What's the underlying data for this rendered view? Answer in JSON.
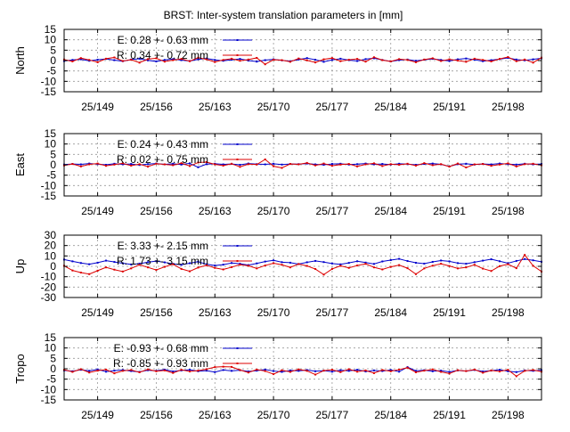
{
  "title": "BRST: Inter-system translation parameters in [mm]",
  "colors": {
    "E": "#0000cc",
    "R": "#dd0000",
    "grid": "#999999",
    "axis": "#000000"
  },
  "chart_data": [
    {
      "type": "line",
      "ylabel": "North",
      "xlim": [
        145,
        202
      ],
      "ylim": [
        -15,
        15
      ],
      "yticks": [
        "15",
        "10",
        "5",
        "0",
        "-5",
        "-10",
        "-15"
      ],
      "ytick_values": [
        15,
        10,
        5,
        0,
        -5,
        -10,
        -15
      ],
      "xtick_values": [
        149,
        156,
        163,
        170,
        177,
        184,
        191,
        198
      ],
      "xtick_labels": [
        "25/149",
        "25/156",
        "25/163",
        "25/170",
        "25/177",
        "25/184",
        "25/191",
        "25/198"
      ],
      "series": [
        {
          "name": "E",
          "legend": "E:   0.28 +- 0.63 mm",
          "color": "#0000cc",
          "values": [
            -0.2,
            0.3,
            0.6,
            -0.1,
            0.4,
            0.8,
            0.2,
            -0.3,
            0.5,
            0.9,
            0.1,
            -0.4,
            0.3,
            0.7,
            0.2,
            -0.2,
            0.6,
            1.0,
            0.3,
            -0.1,
            0.4,
            0.8,
            0.0,
            -0.5,
            0.2,
            0.6,
            0.1,
            -0.3,
            0.5,
            1.2,
            0.4,
            -0.6,
            0.3,
            0.9,
            0.2,
            -0.2,
            0.7,
            1.1,
            0.3,
            -0.4,
            0.2,
            0.5,
            -0.1,
            0.4,
            0.8,
            0.3,
            -0.2,
            0.6,
            1.0,
            0.4,
            -0.3,
            0.2,
            0.7,
            1.3,
            0.5,
            0.1,
            0.6,
            1.1
          ]
        },
        {
          "name": "R",
          "legend": "R:   0.34 +- 0.72 mm",
          "color": "#dd0000",
          "values": [
            0.5,
            -0.4,
            1.2,
            0.3,
            -0.8,
            0.9,
            1.5,
            -0.2,
            0.4,
            -1.0,
            0.7,
            1.1,
            -0.5,
            0.2,
            0.8,
            -0.3,
            1.4,
            0.6,
            -0.7,
            0.3,
            0.9,
            -0.1,
            0.5,
            1.3,
            -1.8,
            0.4,
            0.2,
            -0.6,
            1.0,
            0.1,
            -0.9,
            0.6,
            1.2,
            -0.3,
            0.4,
            0.8,
            -0.5,
            1.6,
            0.2,
            -0.4,
            0.7,
            0.3,
            -0.8,
            0.5,
            1.1,
            -0.2,
            0.6,
            0.0,
            -0.6,
            0.9,
            0.3,
            -0.4,
            0.8,
            1.7,
            -0.3,
            0.5,
            -1.0,
            1.4
          ]
        }
      ]
    },
    {
      "type": "line",
      "ylabel": "East",
      "xlim": [
        145,
        202
      ],
      "ylim": [
        -15,
        15
      ],
      "yticks": [
        "15",
        "10",
        "5",
        "0",
        "-5",
        "-10",
        "-15"
      ],
      "ytick_values": [
        15,
        10,
        5,
        0,
        -5,
        -10,
        -15
      ],
      "xtick_values": [
        149,
        156,
        163,
        170,
        177,
        184,
        191,
        198
      ],
      "xtick_labels": [
        "25/149",
        "25/156",
        "25/163",
        "25/170",
        "25/177",
        "25/184",
        "25/191",
        "25/198"
      ],
      "series": [
        {
          "name": "E",
          "legend": "E:   0.24 +- 0.43 mm",
          "color": "#0000cc",
          "values": [
            0.1,
            0.4,
            0.2,
            0.6,
            0.3,
            0.0,
            0.5,
            0.2,
            0.4,
            -0.1,
            0.3,
            0.6,
            0.2,
            0.5,
            0.1,
            0.7,
            -1.2,
            0.3,
            0.5,
            0.2,
            0.4,
            0.0,
            0.6,
            0.3,
            0.2,
            0.5,
            0.1,
            0.4,
            0.3,
            0.6,
            0.2,
            0.0,
            0.4,
            0.5,
            0.1,
            0.3,
            0.6,
            0.2,
            0.4,
            0.1,
            0.5,
            0.3,
            0.0,
            0.4,
            0.6,
            0.2,
            -0.8,
            0.3,
            0.5,
            0.1,
            0.4,
            0.2,
            0.6,
            0.3,
            0.1,
            0.5,
            0.2,
            0.4
          ]
        },
        {
          "name": "R",
          "legend": "R:   0.02 +- 0.75 mm",
          "color": "#dd0000",
          "values": [
            -0.3,
            0.4,
            -0.8,
            0.2,
            0.6,
            -0.5,
            0.1,
            0.7,
            -0.4,
            0.3,
            -0.9,
            0.5,
            0.2,
            -0.2,
            0.8,
            -0.6,
            1.1,
            1.3,
            0.2,
            -0.4,
            0.5,
            -1.0,
            0.3,
            0.1,
            2.6,
            -0.7,
            -1.5,
            0.4,
            0.2,
            0.9,
            -0.3,
            0.6,
            -0.5,
            0.1,
            0.4,
            -0.8,
            0.2,
            0.7,
            -0.6,
            0.3,
            0.0,
            0.5,
            -0.4,
            0.8,
            -0.2,
            0.3,
            -0.9,
            0.6,
            -1.3,
            0.2,
            0.4,
            -0.5,
            0.1,
            0.7,
            -0.8,
            0.3,
            0.5,
            -0.2
          ]
        }
      ]
    },
    {
      "type": "line",
      "ylabel": "Up",
      "xlim": [
        145,
        202
      ],
      "ylim": [
        -30,
        30
      ],
      "yticks": [
        "30",
        "20",
        "10",
        "0",
        "-10",
        "-20",
        "-30"
      ],
      "ytick_values": [
        30,
        20,
        10,
        0,
        -10,
        -20,
        -30
      ],
      "xtick_values": [
        149,
        156,
        163,
        170,
        177,
        184,
        191,
        198
      ],
      "xtick_labels": [
        "25/149",
        "25/156",
        "25/163",
        "25/170",
        "25/177",
        "25/184",
        "25/191",
        "25/198"
      ],
      "series": [
        {
          "name": "E",
          "legend": "E:   3.33 +- 2.15 mm",
          "color": "#0000cc",
          "values": [
            6.5,
            4.8,
            3.2,
            2.0,
            3.5,
            5.5,
            4.2,
            3.0,
            1.8,
            2.6,
            4.0,
            5.0,
            3.8,
            2.4,
            1.5,
            3.0,
            4.5,
            2.0,
            0.8,
            1.6,
            3.2,
            2.5,
            1.2,
            2.8,
            4.6,
            5.8,
            4.0,
            3.5,
            2.2,
            3.9,
            5.2,
            4.1,
            2.7,
            1.9,
            3.3,
            4.9,
            3.6,
            2.3,
            4.7,
            6.0,
            7.2,
            5.1,
            3.4,
            2.6,
            4.3,
            5.6,
            4.8,
            3.1,
            2.5,
            4.0,
            5.5,
            6.8,
            4.9,
            3.0,
            5.2,
            7.0,
            5.8,
            4.4
          ]
        },
        {
          "name": "R",
          "legend": "R:   1.73 +- 3.15 mm",
          "color": "#dd0000",
          "values": [
            0.5,
            -4.0,
            -6.0,
            -7.5,
            -4.2,
            -1.0,
            -3.2,
            -5.0,
            -2.0,
            1.5,
            -1.0,
            -3.5,
            -0.5,
            2.0,
            -2.5,
            -4.8,
            -1.2,
            1.0,
            -1.5,
            -3.0,
            -0.8,
            1.6,
            0.5,
            -2.0,
            0.8,
            3.0,
            1.5,
            -1.0,
            2.2,
            0.4,
            -2.6,
            -8.0,
            -2.5,
            0.5,
            -1.5,
            0.8,
            2.4,
            -1.0,
            -3.0,
            -0.5,
            1.2,
            -1.8,
            -7.5,
            -2.0,
            0.6,
            2.5,
            0.3,
            -2.0,
            -1.0,
            1.5,
            -2.2,
            -4.5,
            0.2,
            2.0,
            -1.8,
            11.0,
            0.5,
            -5.0
          ]
        }
      ]
    },
    {
      "type": "line",
      "ylabel": "Tropo",
      "xlim": [
        145,
        202
      ],
      "ylim": [
        -15,
        15
      ],
      "yticks": [
        "15",
        "10",
        "5",
        "0",
        "-5",
        "-10",
        "-15"
      ],
      "ytick_values": [
        15,
        10,
        5,
        0,
        -5,
        -10,
        -15
      ],
      "xtick_values": [
        149,
        156,
        163,
        170,
        177,
        184,
        191,
        198
      ],
      "xtick_labels": [
        "25/149",
        "25/156",
        "25/163",
        "25/170",
        "25/177",
        "25/184",
        "25/191",
        "25/198"
      ],
      "series": [
        {
          "name": "E",
          "legend": "E:  -0.93 +- 0.68 mm",
          "color": "#0000cc",
          "values": [
            -0.8,
            -1.2,
            -0.5,
            -1.0,
            -0.3,
            -1.4,
            -0.9,
            -0.6,
            -1.1,
            -1.5,
            -0.7,
            -1.0,
            -0.4,
            -1.3,
            -0.8,
            -0.5,
            -1.2,
            -0.9,
            -1.6,
            -0.6,
            -1.0,
            -0.7,
            -1.3,
            -0.9,
            -0.4,
            -1.1,
            -1.5,
            -0.8,
            -1.0,
            -0.6,
            -1.2,
            -0.9,
            -1.4,
            -0.7,
            -1.0,
            -0.5,
            -1.3,
            -0.8,
            -1.1,
            -0.6,
            -1.4,
            0.8,
            -1.0,
            -0.7,
            -1.2,
            -0.9,
            -1.5,
            -0.8,
            -1.1,
            -0.6,
            -1.3,
            -0.9,
            -0.5,
            -1.2,
            -1.6,
            -0.8,
            -1.0,
            -0.7
          ]
        },
        {
          "name": "R",
          "legend": "R:  -0.85 +- 0.93 mm",
          "color": "#dd0000",
          "values": [
            -0.5,
            -1.5,
            -0.2,
            -1.8,
            -0.9,
            -0.4,
            -2.2,
            -1.0,
            -0.6,
            -1.7,
            -0.3,
            -1.2,
            -0.8,
            -2.0,
            -0.5,
            -1.3,
            -0.9,
            -0.2,
            0.8,
            1.0,
            0.9,
            -0.6,
            -1.8,
            -0.4,
            -1.1,
            -2.6,
            -0.7,
            -1.5,
            -0.3,
            -1.0,
            -2.8,
            -0.9,
            -0.5,
            -1.6,
            -0.2,
            -1.4,
            -0.8,
            -2.1,
            -0.6,
            -1.2,
            -0.4,
            0.5,
            -1.7,
            -0.9,
            -0.3,
            -1.5,
            -2.3,
            -0.7,
            -1.1,
            -0.4,
            -1.9,
            -0.8,
            -1.3,
            -0.5,
            -3.6,
            -1.0,
            -0.6,
            -1.4
          ]
        }
      ]
    }
  ]
}
